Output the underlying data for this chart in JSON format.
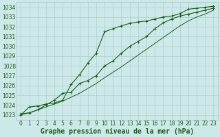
{
  "xlabel": "Graphe pression niveau de la mer (hPa)",
  "ylim": [
    1022.5,
    1034.5
  ],
  "xlim": [
    -0.5,
    23.5
  ],
  "yticks": [
    1023,
    1024,
    1025,
    1026,
    1027,
    1028,
    1029,
    1030,
    1031,
    1032,
    1033,
    1034
  ],
  "xticks": [
    0,
    1,
    2,
    3,
    4,
    5,
    6,
    7,
    8,
    9,
    10,
    11,
    12,
    13,
    14,
    15,
    16,
    17,
    18,
    19,
    20,
    21,
    22,
    23
  ],
  "bg_color": "#cce8e8",
  "grid_color": "#a8c8c8",
  "line_color": "#1a5c1a",
  "line1_x": [
    0,
    1,
    2,
    3,
    4,
    5,
    6,
    7,
    8,
    9,
    10,
    11,
    12,
    13,
    14,
    15,
    16,
    17,
    18,
    19,
    20,
    21,
    22,
    23
  ],
  "line1_y": [
    1023.0,
    1023.8,
    1023.9,
    1024.1,
    1024.2,
    1024.5,
    1026.1,
    1027.1,
    1028.3,
    1029.3,
    1031.5,
    1031.8,
    1032.1,
    1032.35,
    1032.5,
    1032.6,
    1032.8,
    1033.0,
    1033.1,
    1033.35,
    1033.8,
    1033.9,
    1034.0,
    1034.1
  ],
  "line2_x": [
    0,
    1,
    2,
    3,
    4,
    5,
    6,
    7,
    8,
    9,
    10,
    11,
    12,
    13,
    14,
    15,
    16,
    17,
    18,
    19,
    20,
    21,
    22,
    23
  ],
  "line2_y": [
    1023.1,
    1023.2,
    1023.5,
    1024.0,
    1024.5,
    1025.2,
    1025.3,
    1026.2,
    1026.5,
    1027.0,
    1028.0,
    1028.5,
    1029.3,
    1030.0,
    1030.5,
    1031.0,
    1031.8,
    1032.4,
    1032.8,
    1033.1,
    1033.3,
    1033.5,
    1033.7,
    1033.9
  ],
  "line3_x": [
    0,
    1,
    2,
    3,
    4,
    5,
    6,
    7,
    8,
    9,
    10,
    11,
    12,
    13,
    14,
    15,
    16,
    17,
    18,
    19,
    20,
    21,
    22,
    23
  ],
  "line3_y": [
    1023.0,
    1023.2,
    1023.5,
    1023.8,
    1024.1,
    1024.4,
    1024.8,
    1025.2,
    1025.7,
    1026.2,
    1026.8,
    1027.35,
    1027.9,
    1028.5,
    1029.1,
    1029.7,
    1030.3,
    1030.9,
    1031.5,
    1032.1,
    1032.6,
    1033.0,
    1033.3,
    1033.7
  ],
  "tick_fontsize": 5.5,
  "xlabel_fontsize": 7.0
}
